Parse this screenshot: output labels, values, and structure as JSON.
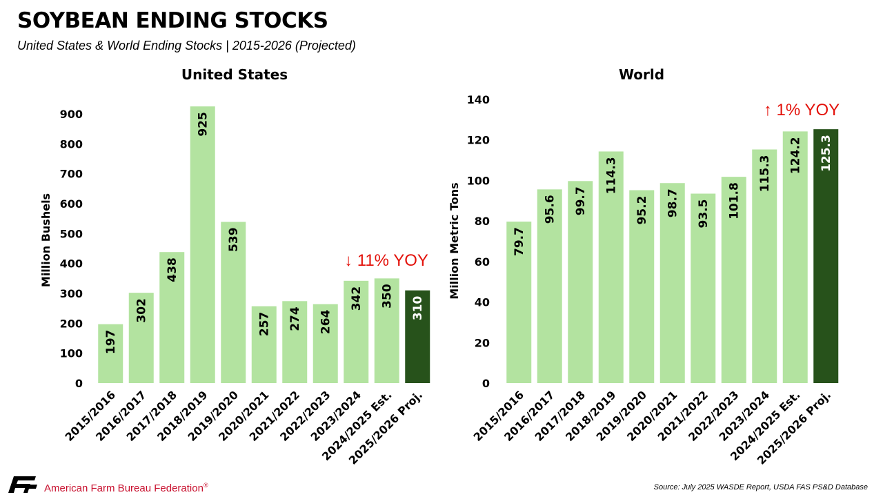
{
  "header": {
    "title": "SOYBEAN ENDING STOCKS",
    "subtitle": "United States & World Ending Stocks | 2015-2026 (Projected)"
  },
  "colors": {
    "bar_light": "#b3e3a0",
    "bar_dark": "#27521b",
    "note_red": "#e3120b",
    "brand_red": "#c8102e"
  },
  "chart_data": [
    {
      "type": "bar",
      "title": "United States",
      "ylabel": "Million Bushels",
      "xlabel": "",
      "ylim": [
        0,
        900
      ],
      "yticks": [
        0,
        100,
        200,
        300,
        400,
        500,
        600,
        700,
        800,
        900
      ],
      "categories": [
        "2015/2016",
        "2016/2017",
        "2017/2018",
        "2018/2019",
        "2019/2020",
        "2020/2021",
        "2021/2022",
        "2022/2023",
        "2023/2024",
        "2024/2025 Est.",
        "2025/2026 Proj."
      ],
      "values": [
        197,
        302,
        438,
        925,
        539,
        257,
        274,
        264,
        342,
        350,
        310
      ],
      "labels": [
        "197",
        "302",
        "438",
        "925",
        "539",
        "257",
        "274",
        "264",
        "342",
        "350",
        "310"
      ],
      "highlight_index": 10,
      "annotation": "↓ 11% YOY",
      "grid": false
    },
    {
      "type": "bar",
      "title": "World",
      "ylabel": "Million Metric Tons",
      "xlabel": "",
      "ylim": [
        0,
        140
      ],
      "yticks": [
        0,
        20,
        40,
        60,
        80,
        100,
        120,
        140
      ],
      "categories": [
        "2015/2016",
        "2016/2017",
        "2017/2018",
        "2018/2019",
        "2019/2020",
        "2020/2021",
        "2021/2022",
        "2022/2023",
        "2023/2024",
        "2024/2025 Est.",
        "2025/2026 Proj."
      ],
      "values": [
        79.7,
        95.6,
        99.7,
        114.3,
        95.2,
        98.7,
        93.5,
        101.8,
        115.3,
        124.2,
        125.3
      ],
      "labels": [
        "79.7",
        "95.6",
        "99.7",
        "114.3",
        "95.2",
        "98.7",
        "93.5",
        "101.8",
        "115.3",
        "124.2",
        "125.3"
      ],
      "highlight_index": 10,
      "annotation": "↑ 1% YOY",
      "grid": false
    }
  ],
  "footer": {
    "organization": "American Farm Bureau Federation",
    "trademark": "®",
    "source": "Source: July 2025 WASDE Report, USDA FAS PS&D Database"
  }
}
